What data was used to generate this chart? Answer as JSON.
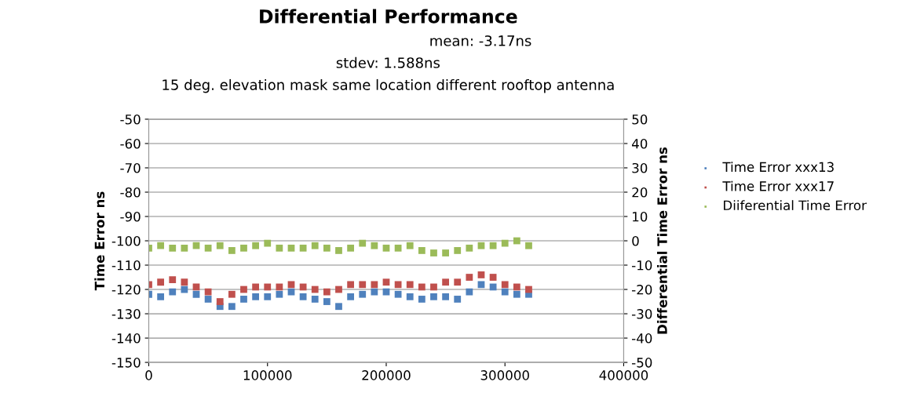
{
  "chart_data": {
    "type": "scatter",
    "title": "Differential Performance",
    "annotations": [
      "mean: -3.17ns",
      "stdev: 1.588ns",
      "15 deg. elevation mask same location different rooftop antenna"
    ],
    "ylabel": "Time Error ns",
    "y2label": "Differential Time Error ns",
    "x": [
      0,
      10000,
      20000,
      30000,
      40000,
      50000,
      60000,
      70000,
      80000,
      90000,
      100000,
      110000,
      120000,
      130000,
      140000,
      150000,
      160000,
      170000,
      180000,
      190000,
      200000,
      210000,
      220000,
      230000,
      240000,
      250000,
      260000,
      270000,
      280000,
      290000,
      300000,
      310000,
      320000
    ],
    "series": [
      {
        "name": "Time Error xxx13",
        "color": "#4f81bd",
        "values": [
          -122,
          -123,
          -121,
          -120,
          -122,
          -124,
          -127,
          -127,
          -124,
          -123,
          -123,
          -122,
          -121,
          -123,
          -124,
          -125,
          -127,
          -123,
          -122,
          -121,
          -121,
          -122,
          -123,
          -124,
          -123,
          -123,
          -124,
          -121,
          -118,
          -119,
          -121,
          -122,
          -122
        ]
      },
      {
        "name": "Time Error xxx17",
        "color": "#c0504d",
        "values": [
          -118,
          -117,
          -116,
          -117,
          -119,
          -121,
          -125,
          -122,
          -120,
          -119,
          -119,
          -119,
          -118,
          -119,
          -120,
          -121,
          -120,
          -118,
          -118,
          -118,
          -117,
          -118,
          -118,
          -119,
          -119,
          -117,
          -117,
          -115,
          -114,
          -115,
          -118,
          -119,
          -120
        ]
      },
      {
        "name": "Diiferential Time Error",
        "color": "#9bbb59",
        "axis": "y2",
        "values": [
          -3,
          -2,
          -3,
          -3,
          -2,
          -3,
          -2,
          -4,
          -3,
          -2,
          -1,
          -3,
          -3,
          -3,
          -2,
          -3,
          -4,
          -3,
          -1,
          -2,
          -3,
          -3,
          -2,
          -4,
          -5,
          -5,
          -4,
          -3,
          -2,
          -2,
          -1,
          0,
          -2
        ]
      }
    ],
    "xlim": [
      0,
      400000
    ],
    "xticks": [
      0,
      100000,
      200000,
      300000,
      400000
    ],
    "ylim": [
      -150,
      -50
    ],
    "yticks": [
      -150,
      -140,
      -130,
      -120,
      -110,
      -100,
      -90,
      -80,
      -70,
      -60,
      -50
    ],
    "y2lim": [
      -50,
      50
    ],
    "y2ticks": [
      -50,
      -40,
      -30,
      -20,
      -10,
      0,
      10,
      20,
      30,
      40,
      50
    ],
    "grid": "y",
    "legend": "right",
    "marker": "square"
  }
}
